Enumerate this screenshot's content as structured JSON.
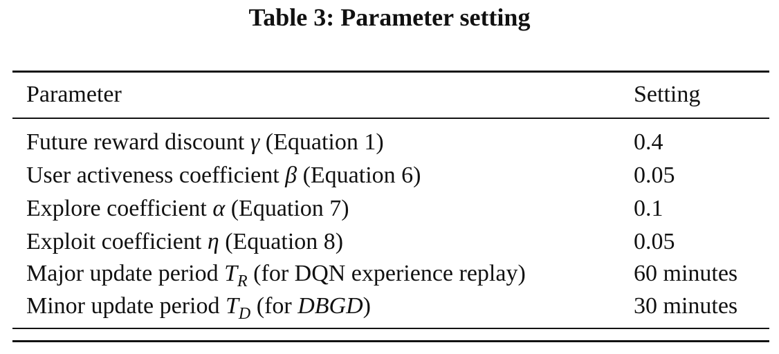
{
  "caption": "Table 3: Parameter setting",
  "table": {
    "headers": {
      "parameter": "Parameter",
      "setting": "Setting"
    },
    "rows": [
      {
        "label": "Future reward discount",
        "symbol": "γ",
        "sub": "",
        "note_pre": " (Equation 1)",
        "note_it": "",
        "note_post": "",
        "value": "0.4"
      },
      {
        "label": "User activeness coefficient",
        "symbol": "β",
        "sub": "",
        "note_pre": " (Equation 6)",
        "note_it": "",
        "note_post": "",
        "value": "0.05"
      },
      {
        "label": "Explore coefficient",
        "symbol": "α",
        "sub": "",
        "note_pre": " (Equation 7)",
        "note_it": "",
        "note_post": "",
        "value": "0.1"
      },
      {
        "label": "Exploit coefficient",
        "symbol": "η",
        "sub": "",
        "note_pre": " (Equation 8)",
        "note_it": "",
        "note_post": "",
        "value": "0.05"
      },
      {
        "label": "Major update period",
        "symbol": "T",
        "sub": "R",
        "note_pre": " (for DQN experience replay)",
        "note_it": "",
        "note_post": "",
        "value": "60 minutes"
      },
      {
        "label": "Minor update period",
        "symbol": "T",
        "sub": "D",
        "note_pre": " (for ",
        "note_it": "DBGD",
        "note_post": ")",
        "value": "30 minutes"
      }
    ]
  }
}
